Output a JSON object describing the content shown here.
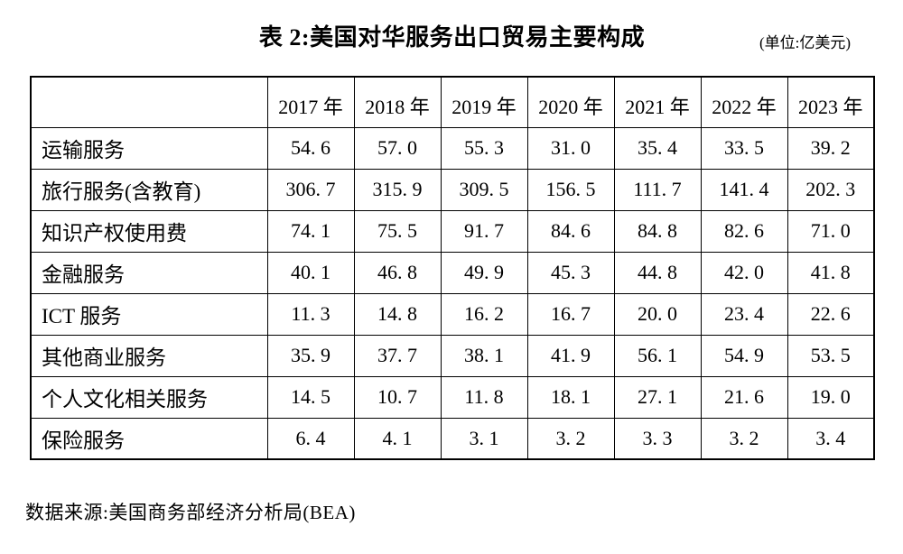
{
  "page": {
    "title": "表 2:美国对华服务出口贸易主要构成",
    "unit_note": "(单位:亿美元)",
    "source": "数据来源:美国商务部经济分析局(BEA)"
  },
  "table": {
    "corner_label": "",
    "col_headers": [
      "2017 年",
      "2018 年",
      "2019 年",
      "2020 年",
      "2021 年",
      "2022 年",
      "2023 年"
    ],
    "rows": [
      {
        "label": "运输服务",
        "values": [
          "54. 6",
          "57. 0",
          "55. 3",
          "31. 0",
          "35. 4",
          "33. 5",
          "39. 2"
        ]
      },
      {
        "label": "旅行服务(含教育)",
        "values": [
          "306. 7",
          "315. 9",
          "309. 5",
          "156. 5",
          "111. 7",
          "141. 4",
          "202. 3"
        ]
      },
      {
        "label": "知识产权使用费",
        "values": [
          "74. 1",
          "75. 5",
          "91. 7",
          "84. 6",
          "84. 8",
          "82. 6",
          "71. 0"
        ]
      },
      {
        "label": "金融服务",
        "values": [
          "40. 1",
          "46. 8",
          "49. 9",
          "45. 3",
          "44. 8",
          "42. 0",
          "41. 8"
        ]
      },
      {
        "label": "ICT 服务",
        "values": [
          "11. 3",
          "14. 8",
          "16. 2",
          "16. 7",
          "20. 0",
          "23. 4",
          "22. 6"
        ]
      },
      {
        "label": "其他商业服务",
        "values": [
          "35. 9",
          "37. 7",
          "38. 1",
          "41. 9",
          "56. 1",
          "54. 9",
          "53. 5"
        ]
      },
      {
        "label": "个人文化相关服务",
        "values": [
          "14. 5",
          "10. 7",
          "11. 8",
          "18. 1",
          "27. 1",
          "21. 6",
          "19. 0"
        ]
      },
      {
        "label": "保险服务",
        "values": [
          "6. 4",
          "4. 1",
          "3. 1",
          "3. 2",
          "3. 3",
          "3. 2",
          "3. 4"
        ]
      }
    ]
  },
  "chart_data": {
    "type": "table",
    "title": "表 2:美国对华服务出口贸易主要构成",
    "unit": "亿美元",
    "source": "数据来源:美国商务部经济分析局(BEA)",
    "categories": [
      "2017",
      "2018",
      "2019",
      "2020",
      "2021",
      "2022",
      "2023"
    ],
    "series": [
      {
        "name": "运输服务",
        "values": [
          54.6,
          57.0,
          55.3,
          31.0,
          35.4,
          33.5,
          39.2
        ]
      },
      {
        "name": "旅行服务(含教育)",
        "values": [
          306.7,
          315.9,
          309.5,
          156.5,
          111.7,
          141.4,
          202.3
        ]
      },
      {
        "name": "知识产权使用费",
        "values": [
          74.1,
          75.5,
          91.7,
          84.6,
          84.8,
          82.6,
          71.0
        ]
      },
      {
        "name": "金融服务",
        "values": [
          40.1,
          46.8,
          49.9,
          45.3,
          44.8,
          42.0,
          41.8
        ]
      },
      {
        "name": "ICT服务",
        "values": [
          11.3,
          14.8,
          16.2,
          16.7,
          20.0,
          23.4,
          22.6
        ]
      },
      {
        "name": "其他商业服务",
        "values": [
          35.9,
          37.7,
          38.1,
          41.9,
          56.1,
          54.9,
          53.5
        ]
      },
      {
        "name": "个人文化相关服务",
        "values": [
          14.5,
          10.7,
          11.8,
          18.1,
          27.1,
          21.6,
          19.0
        ]
      },
      {
        "name": "保险服务",
        "values": [
          6.4,
          4.1,
          3.1,
          3.2,
          3.3,
          3.2,
          3.4
        ]
      }
    ]
  }
}
